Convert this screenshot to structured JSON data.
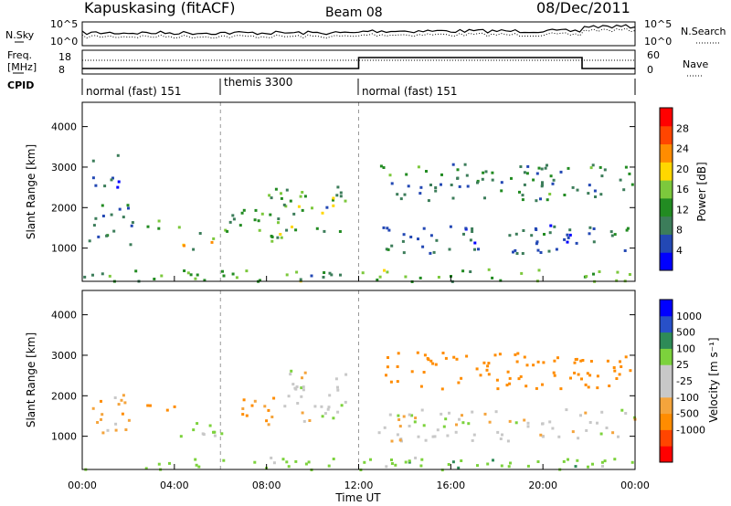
{
  "header": {
    "station": "Kapuskasing (fitACF)",
    "beam": "Beam 08",
    "date": "08/Dec/2011"
  },
  "noise_panel": {
    "left_label": "N.Sky",
    "left_ticks": [
      "10^5",
      "10^0"
    ],
    "right_label": "N.Search",
    "right_ticks": [
      "10^5",
      "10^0"
    ]
  },
  "freq_panel": {
    "left_label_1": "Freq.",
    "left_label_2": "[MHz]",
    "left_ticks": [
      "18",
      "8"
    ],
    "right_label": "Nave",
    "right_ticks": [
      "60",
      "0"
    ]
  },
  "cpid": {
    "label": "CPID",
    "segments": [
      {
        "start_hour": 0,
        "end_hour": 6,
        "text": "normal (fast) 151"
      },
      {
        "start_hour": 6,
        "end_hour": 12,
        "text": "themis 3300"
      },
      {
        "start_hour": 12,
        "end_hour": 24,
        "text": "normal (fast) 151"
      }
    ]
  },
  "colors": {
    "power_scale": [
      "#0000ff",
      "#2348b4",
      "#3c7d5a",
      "#228b22",
      "#7cc83c",
      "#ffd700",
      "#ff8c00",
      "#ff4500",
      "#ff0000"
    ],
    "velocity_scale": [
      "#ff0000",
      "#ff4500",
      "#ff8c00",
      "#f4a43c",
      "#c8c8c8",
      "#c8c8c8",
      "#7cd23c",
      "#2e8b57",
      "#2850c8",
      "#0000ff"
    ]
  },
  "chart_data": [
    {
      "type": "heatmap",
      "panel": "power",
      "ylabel": "Slant Range [km]",
      "ylim": [
        180,
        4600
      ],
      "yticks": [
        "1000",
        "2000",
        "3000",
        "4000"
      ],
      "xlim": [
        0,
        24
      ],
      "colorbar": {
        "label": "Power [dB]",
        "ticks": [
          "4",
          "8",
          "12",
          "16",
          "20",
          "24",
          "28"
        ],
        "range": [
          0,
          32
        ]
      },
      "regions": [
        {
          "t0": 0.2,
          "t1": 2.2,
          "r0": 1100,
          "r1": 2100,
          "v": 9
        },
        {
          "t0": 0.4,
          "t1": 1.6,
          "r0": 2500,
          "r1": 3400,
          "v": 7
        },
        {
          "t0": 2.6,
          "t1": 4.2,
          "r0": 1500,
          "r1": 1800,
          "v": 14
        },
        {
          "t0": 4.2,
          "t1": 6.0,
          "r0": 1000,
          "r1": 1400,
          "v": 18
        },
        {
          "t0": 6.0,
          "t1": 8.0,
          "r0": 1200,
          "r1": 2000,
          "v": 12
        },
        {
          "t0": 8.0,
          "t1": 11.5,
          "r0": 1200,
          "r1": 2600,
          "v": 14
        },
        {
          "t0": 12.8,
          "t1": 24.0,
          "r0": 2200,
          "r1": 3100,
          "v": 11
        },
        {
          "t0": 12.8,
          "t1": 24.0,
          "r0": 900,
          "r1": 1600,
          "v": 8
        },
        {
          "t0": 0.0,
          "t1": 24.0,
          "r0": 200,
          "r1": 500,
          "v": 14
        }
      ],
      "dashed_lines_hours": [
        6,
        12
      ]
    },
    {
      "type": "heatmap",
      "panel": "velocity",
      "ylabel": "Slant Range [km]",
      "xlabel": "Time UT",
      "ylim": [
        180,
        4600
      ],
      "yticks": [
        "1000",
        "2000",
        "3000",
        "4000"
      ],
      "xlim": [
        0,
        24
      ],
      "xticks": [
        "00:00",
        "04:00",
        "08:00",
        "12:00",
        "16:00",
        "20:00",
        "00:00"
      ],
      "colorbar": {
        "label": "Velocity [m s⁻¹]",
        "ticks": [
          "1000",
          "500",
          "100",
          "25",
          "-25",
          "-100",
          "-500",
          "-1000"
        ]
      },
      "regions": [
        {
          "t0": 0.2,
          "t1": 2.2,
          "r0": 1100,
          "r1": 2100,
          "v": -60
        },
        {
          "t0": 2.6,
          "t1": 4.2,
          "r0": 1500,
          "r1": 1800,
          "v": -300
        },
        {
          "t0": 4.2,
          "t1": 6.5,
          "r0": 1000,
          "r1": 1500,
          "v": 60
        },
        {
          "t0": 6.5,
          "t1": 8.5,
          "r0": 1300,
          "r1": 2000,
          "v": -100
        },
        {
          "t0": 8.5,
          "t1": 11.5,
          "r0": 1400,
          "r1": 2700,
          "v": 0
        },
        {
          "t0": 12.8,
          "t1": 24.0,
          "r0": 2200,
          "r1": 3100,
          "v": -300
        },
        {
          "t0": 12.8,
          "t1": 24.0,
          "r0": 900,
          "r1": 1700,
          "v": 0
        },
        {
          "t0": 0.0,
          "t1": 24.0,
          "r0": 200,
          "r1": 500,
          "v": 60
        }
      ],
      "dashed_lines_hours": [
        6,
        12
      ]
    }
  ]
}
